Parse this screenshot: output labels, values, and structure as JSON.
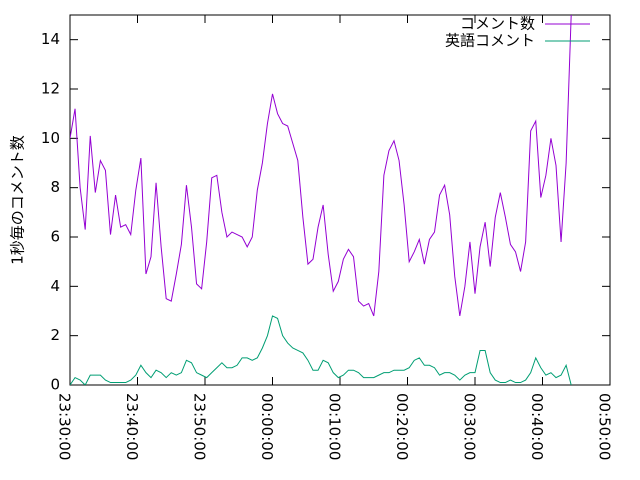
{
  "chart_data": {
    "type": "line",
    "ylabel": "1秒毎のコメント数",
    "xlim": [
      "23:30:00",
      "00:50:00"
    ],
    "xticks": [
      "23:30:00",
      "23:40:00",
      "23:50:00",
      "00:00:00",
      "00:10:00",
      "00:20:00",
      "00:30:00",
      "00:40:00",
      "00:50:00"
    ],
    "ylim": [
      0,
      15
    ],
    "yticks": [
      0,
      2,
      4,
      6,
      8,
      10,
      12,
      14
    ],
    "legend": "upper right",
    "x": [
      "23:30:00",
      "23:30:45",
      "23:31:30",
      "23:32:15",
      "23:33:00",
      "23:33:45",
      "23:34:30",
      "23:35:15",
      "23:36:00",
      "23:36:45",
      "23:37:30",
      "23:38:15",
      "23:39:00",
      "23:39:45",
      "23:40:30",
      "23:41:15",
      "23:42:00",
      "23:42:45",
      "23:43:30",
      "23:44:15",
      "23:45:00",
      "23:45:45",
      "23:46:30",
      "23:47:15",
      "23:48:00",
      "23:48:45",
      "23:49:30",
      "23:50:15",
      "23:51:00",
      "23:51:45",
      "23:52:30",
      "23:53:15",
      "23:54:00",
      "23:54:45",
      "23:55:30",
      "23:56:15",
      "23:57:00",
      "23:57:45",
      "23:58:30",
      "23:59:15",
      "00:00:00",
      "00:00:45",
      "00:01:30",
      "00:02:15",
      "00:03:00",
      "00:03:45",
      "00:04:30",
      "00:05:15",
      "00:06:00",
      "00:06:45",
      "00:07:30",
      "00:08:15",
      "00:09:00",
      "00:09:45",
      "00:10:30",
      "00:11:15",
      "00:12:00",
      "00:12:45",
      "00:13:30",
      "00:14:15",
      "00:15:00",
      "00:15:45",
      "00:16:30",
      "00:17:15",
      "00:18:00",
      "00:18:45",
      "00:19:30",
      "00:20:15",
      "00:21:00",
      "00:21:45",
      "00:22:30",
      "00:23:15",
      "00:24:00",
      "00:24:45",
      "00:25:30",
      "00:26:15",
      "00:27:00",
      "00:27:45",
      "00:28:30",
      "00:29:15",
      "00:30:00",
      "00:30:45",
      "00:31:30",
      "00:32:15",
      "00:33:00",
      "00:33:45",
      "00:34:30",
      "00:35:15",
      "00:36:00",
      "00:36:45",
      "00:37:30",
      "00:38:15",
      "00:39:00",
      "00:39:45",
      "00:40:30",
      "00:41:15",
      "00:42:00",
      "00:42:45",
      "00:43:30",
      "00:44:15"
    ],
    "series": [
      {
        "name": "コメント数",
        "color": "#9400d3",
        "values": [
          10.0,
          11.2,
          8.0,
          6.3,
          10.1,
          7.8,
          9.1,
          8.7,
          6.1,
          7.7,
          6.4,
          6.5,
          6.1,
          7.9,
          9.2,
          4.5,
          5.2,
          8.2,
          5.6,
          3.5,
          3.4,
          4.5,
          5.7,
          8.1,
          6.4,
          4.1,
          3.9,
          5.8,
          8.4,
          8.5,
          7.0,
          6.0,
          6.2,
          6.1,
          6.0,
          5.6,
          6.0,
          7.9,
          9.0,
          10.6,
          11.8,
          11.0,
          10.6,
          10.5,
          9.8,
          9.1,
          6.8,
          4.9,
          5.1,
          6.4,
          7.3,
          5.3,
          3.8,
          4.2,
          5.1,
          5.5,
          5.2,
          3.4,
          3.2,
          3.3,
          2.8,
          4.6,
          8.5,
          9.5,
          9.9,
          9.1,
          7.3,
          5.0,
          5.4,
          5.9,
          4.9,
          5.9,
          6.2,
          7.7,
          8.1,
          6.9,
          4.4,
          2.8,
          4.0,
          5.8,
          3.7,
          5.6,
          6.6,
          4.8,
          6.8,
          7.8,
          6.8,
          5.7,
          5.4,
          4.6,
          5.8,
          10.3,
          10.7,
          7.6,
          8.5,
          10.0,
          8.9,
          5.8,
          9.0,
          15
        ]
      },
      {
        "name": "英語コメント",
        "color": "#009e73",
        "values": [
          0.0,
          0.3,
          0.2,
          0.0,
          0.4,
          0.4,
          0.4,
          0.2,
          0.1,
          0.1,
          0.1,
          0.1,
          0.2,
          0.4,
          0.8,
          0.5,
          0.3,
          0.6,
          0.5,
          0.3,
          0.5,
          0.4,
          0.5,
          1.0,
          0.9,
          0.5,
          0.4,
          0.3,
          0.5,
          0.7,
          0.9,
          0.7,
          0.7,
          0.8,
          1.1,
          1.1,
          1.0,
          1.1,
          1.5,
          2.0,
          2.8,
          2.7,
          2.0,
          1.7,
          1.5,
          1.4,
          1.3,
          1.0,
          0.6,
          0.6,
          1.0,
          0.9,
          0.5,
          0.3,
          0.4,
          0.6,
          0.6,
          0.5,
          0.3,
          0.3,
          0.3,
          0.4,
          0.5,
          0.5,
          0.6,
          0.6,
          0.6,
          0.7,
          1.0,
          1.1,
          0.8,
          0.8,
          0.7,
          0.4,
          0.5,
          0.5,
          0.4,
          0.2,
          0.4,
          0.5,
          0.5,
          1.4,
          1.4,
          0.5,
          0.2,
          0.1,
          0.1,
          0.2,
          0.1,
          0.1,
          0.2,
          0.5,
          1.1,
          0.7,
          0.4,
          0.5,
          0.3,
          0.4,
          0.8,
          0.0
        ]
      }
    ]
  }
}
